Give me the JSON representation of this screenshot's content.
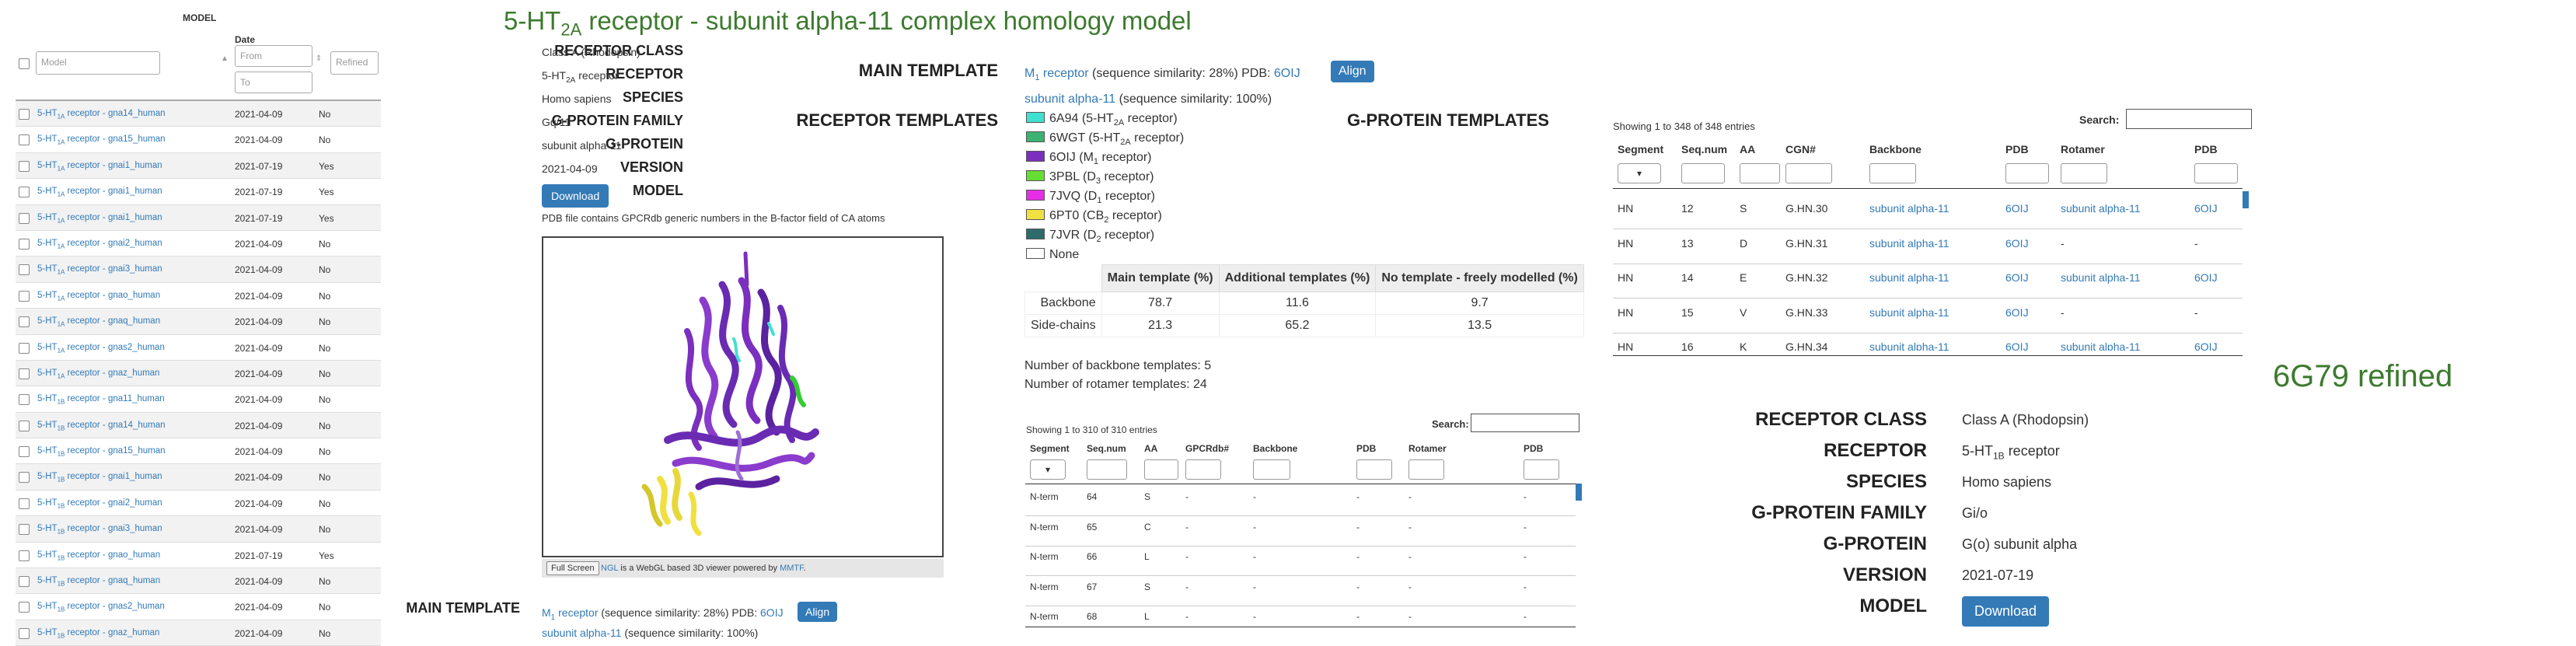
{
  "title": {
    "pre": "5-HT",
    "sub": "2A",
    "post": " receptor - subunit alpha-11 complex homology model"
  },
  "model_list": {
    "header_model": "MODEL",
    "header_date": "Date",
    "model_placeholder": "Model",
    "date_from_placeholder": "From",
    "date_to_placeholder": "To",
    "refined_placeholder": "Refined",
    "rows": [
      {
        "pre": "5-HT",
        "sub": "1A",
        "post": " receptor - gna14_human",
        "date": "2021-04-09",
        "refined": "No"
      },
      {
        "pre": "5-HT",
        "sub": "1A",
        "post": " receptor - gna15_human",
        "date": "2021-04-09",
        "refined": "No"
      },
      {
        "pre": "5-HT",
        "sub": "1A",
        "post": " receptor - gnai1_human",
        "date": "2021-07-19",
        "refined": "Yes"
      },
      {
        "pre": "5-HT",
        "sub": "1A",
        "post": " receptor - gnai1_human",
        "date": "2021-07-19",
        "refined": "Yes"
      },
      {
        "pre": "5-HT",
        "sub": "1A",
        "post": " receptor - gnai1_human",
        "date": "2021-07-19",
        "refined": "Yes"
      },
      {
        "pre": "5-HT",
        "sub": "1A",
        "post": " receptor - gnai2_human",
        "date": "2021-04-09",
        "refined": "No"
      },
      {
        "pre": "5-HT",
        "sub": "1A",
        "post": " receptor - gnai3_human",
        "date": "2021-04-09",
        "refined": "No"
      },
      {
        "pre": "5-HT",
        "sub": "1A",
        "post": " receptor - gnao_human",
        "date": "2021-04-09",
        "refined": "No"
      },
      {
        "pre": "5-HT",
        "sub": "1A",
        "post": " receptor - gnaq_human",
        "date": "2021-04-09",
        "refined": "No"
      },
      {
        "pre": "5-HT",
        "sub": "1A",
        "post": " receptor - gnas2_human",
        "date": "2021-04-09",
        "refined": "No"
      },
      {
        "pre": "5-HT",
        "sub": "1A",
        "post": " receptor - gnaz_human",
        "date": "2021-04-09",
        "refined": "No"
      },
      {
        "pre": "5-HT",
        "sub": "1B",
        "post": " receptor - gna11_human",
        "date": "2021-04-09",
        "refined": "No"
      },
      {
        "pre": "5-HT",
        "sub": "1B",
        "post": " receptor - gna14_human",
        "date": "2021-04-09",
        "refined": "No"
      },
      {
        "pre": "5-HT",
        "sub": "1B",
        "post": " receptor - gna15_human",
        "date": "2021-04-09",
        "refined": "No"
      },
      {
        "pre": "5-HT",
        "sub": "1B",
        "post": " receptor - gnai1_human",
        "date": "2021-04-09",
        "refined": "No"
      },
      {
        "pre": "5-HT",
        "sub": "1B",
        "post": " receptor - gnai2_human",
        "date": "2021-04-09",
        "refined": "No"
      },
      {
        "pre": "5-HT",
        "sub": "1B",
        "post": " receptor - gnai3_human",
        "date": "2021-04-09",
        "refined": "No"
      },
      {
        "pre": "5-HT",
        "sub": "1B",
        "post": " receptor - gnao_human",
        "date": "2021-07-19",
        "refined": "Yes"
      },
      {
        "pre": "5-HT",
        "sub": "1B",
        "post": " receptor - gnaq_human",
        "date": "2021-04-09",
        "refined": "No"
      },
      {
        "pre": "5-HT",
        "sub": "1B",
        "post": " receptor - gnas2_human",
        "date": "2021-04-09",
        "refined": "No"
      },
      {
        "pre": "5-HT",
        "sub": "1B",
        "post": " receptor - gnaz_human",
        "date": "2021-04-09",
        "refined": "No"
      }
    ]
  },
  "info": {
    "receptor_class_label": "RECEPTOR CLASS",
    "receptor_class": "Class A (Rhodopsin)",
    "receptor_label": "RECEPTOR",
    "receptor_pre": "5-HT",
    "receptor_sub": "2A",
    "receptor_post": " receptor",
    "species_label": "SPECIES",
    "species": "Homo sapiens",
    "gprotein_family_label": "G-PROTEIN FAMILY",
    "gprotein_family": "Gq/11",
    "gprotein_label": "G-PROTEIN",
    "gprotein": "subunit alpha-11",
    "version_label": "VERSION",
    "version": "2021-04-09",
    "model_label": "MODEL",
    "download": "Download",
    "pdb_note": "PDB file contains GPCRdb generic numbers in the B-factor field of CA atoms",
    "fullscreen": "Full Screen",
    "ngl_link": "NGL",
    "ngl_text": " is a WebGL based 3D viewer powered by ",
    "mmtf_link": "MMTF",
    "ngl_end": "."
  },
  "bottom_main": {
    "label": "MAIN TEMPLATE",
    "receptor_pre": "M",
    "receptor_sub": "1",
    "receptor_post": " receptor",
    "sim": " (sequence similarity: 28%) PDB: ",
    "pdb": "6OIJ",
    "align": "Align",
    "gprot": "subunit alpha-11",
    "gprot_sim": " (sequence similarity: 100%)"
  },
  "templates": {
    "main_label": "MAIN TEMPLATE",
    "main_receptor_pre": "M",
    "main_receptor_sub": "1",
    "main_receptor_post": " receptor",
    "main_sim": " (sequence similarity: 28%) PDB: ",
    "main_pdb": "6OIJ",
    "align": "Align",
    "main_gprot": "subunit alpha-11",
    "main_gprot_sim": " (sequence similarity: 100%)",
    "receptor_templates_label": "RECEPTOR TEMPLATES",
    "gprotein_templates_label": "G-PROTEIN TEMPLATES",
    "legend": [
      {
        "color": "#40e0d0",
        "pdb": "6A94",
        "pre": " (5-HT",
        "sub": "2A",
        "post": " receptor)"
      },
      {
        "color": "#3cb371",
        "pdb": "6WGT",
        "pre": " (5-HT",
        "sub": "2A",
        "post": " receptor)"
      },
      {
        "color": "#7b2fbe",
        "pdb": "6OIJ",
        "pre": " (M",
        "sub": "1",
        "post": " receptor)"
      },
      {
        "color": "#66dd33",
        "pdb": "3PBL",
        "pre": " (D",
        "sub": "3",
        "post": " receptor)"
      },
      {
        "color": "#e62ee6",
        "pdb": "7JVQ",
        "pre": " (D",
        "sub": "1",
        "post": " receptor)"
      },
      {
        "color": "#f0e040",
        "pdb": "6PT0",
        "pre": " (CB",
        "sub": "2",
        "post": " receptor)"
      },
      {
        "color": "#2e6b6b",
        "pdb": "7JVR",
        "pre": " (D",
        "sub": "2",
        "post": " receptor)"
      },
      {
        "color": "#ffffff",
        "pdb": "None",
        "pre": "",
        "sub": "",
        "post": ""
      }
    ],
    "coverage_headers": [
      "Main template (%)",
      "Additional templates (%)",
      "No template - freely modelled (%)"
    ],
    "coverage_rows": [
      {
        "label": "Backbone",
        "values": [
          "78.7",
          "11.6",
          "9.7"
        ]
      },
      {
        "label": "Side-chains",
        "values": [
          "21.3",
          "65.2",
          "13.5"
        ]
      }
    ],
    "backbone_count": "Number of backbone templates: 5",
    "rotamer_count": "Number of rotamer templates: 24"
  },
  "receptor_table": {
    "info": "Showing 1 to 310 of 310 entries",
    "search_label": "Search:",
    "headers": [
      "Segment",
      "Seq.num",
      "AA",
      "GPCRdb#",
      "Backbone",
      "PDB",
      "Rotamer",
      "PDB"
    ],
    "rows": [
      [
        "N-term",
        "64",
        "S",
        "-",
        "-",
        "-",
        "-",
        "-"
      ],
      [
        "N-term",
        "65",
        "C",
        "-",
        "-",
        "-",
        "-",
        "-"
      ],
      [
        "N-term",
        "66",
        "L",
        "-",
        "-",
        "-",
        "-",
        "-"
      ],
      [
        "N-term",
        "67",
        "S",
        "-",
        "-",
        "-",
        "-",
        "-"
      ],
      [
        "N-term",
        "68",
        "L",
        "-",
        "-",
        "-",
        "-",
        "-"
      ]
    ]
  },
  "gprotein_table": {
    "info": "Showing 1 to 348 of 348 entries",
    "search_label": "Search:",
    "headers": [
      "Segment",
      "Seq.num",
      "AA",
      "CGN#",
      "Backbone",
      "PDB",
      "Rotamer",
      "PDB"
    ],
    "rows": [
      [
        "HN",
        "12",
        "S",
        "G.HN.30",
        "subunit alpha-11",
        "6OIJ",
        "subunit alpha-11",
        "6OIJ"
      ],
      [
        "HN",
        "13",
        "D",
        "G.HN.31",
        "subunit alpha-11",
        "6OIJ",
        "-",
        "-"
      ],
      [
        "HN",
        "14",
        "E",
        "G.HN.32",
        "subunit alpha-11",
        "6OIJ",
        "subunit alpha-11",
        "6OIJ"
      ],
      [
        "HN",
        "15",
        "V",
        "G.HN.33",
        "subunit alpha-11",
        "6OIJ",
        "-",
        "-"
      ],
      [
        "HN",
        "16",
        "K",
        "G.HN.34",
        "subunit alpha-11",
        "6OIJ",
        "subunit alpha-11",
        "6OIJ"
      ]
    ]
  },
  "refined": {
    "title": "6G79 refined",
    "receptor_class_label": "RECEPTOR CLASS",
    "receptor_class": "Class A (Rhodopsin)",
    "receptor_label": "RECEPTOR",
    "receptor_pre": "5-HT",
    "receptor_sub": "1B",
    "receptor_post": " receptor",
    "species_label": "SPECIES",
    "species": "Homo sapiens",
    "gprotein_family_label": "G-PROTEIN FAMILY",
    "gprotein_family": "Gi/o",
    "gprotein_label": "G-PROTEIN",
    "gprotein": "G(o) subunit alpha",
    "version_label": "VERSION",
    "version": "2021-07-19",
    "model_label": "MODEL",
    "download": "Download"
  }
}
